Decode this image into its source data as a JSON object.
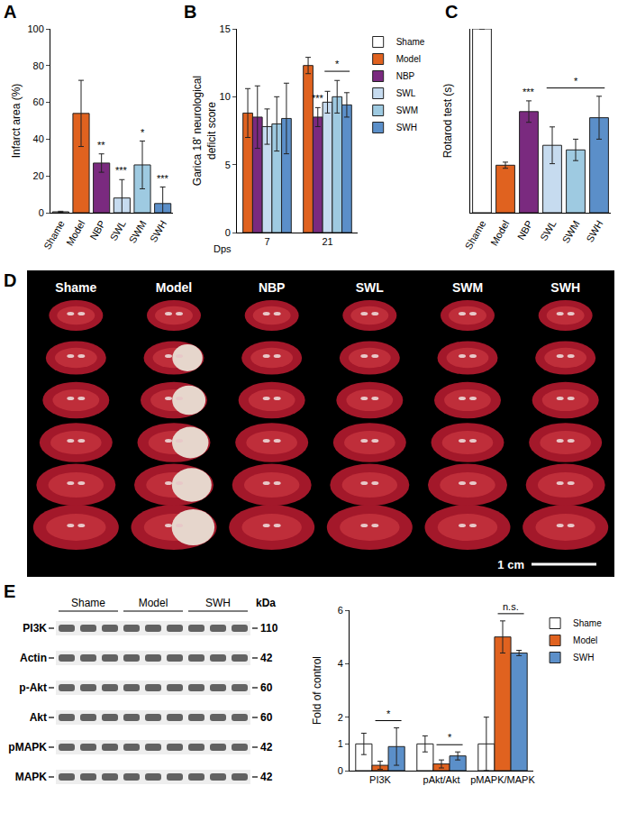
{
  "chart_data": [
    {
      "panel": "A",
      "type": "bar",
      "categories": [
        "Shame",
        "Model",
        "NBP",
        "SWL",
        "SWM",
        "SWH"
      ],
      "values": [
        0.5,
        54,
        27,
        8,
        26,
        5
      ],
      "errors": [
        0.3,
        18,
        5,
        10,
        13,
        9
      ],
      "colors": [
        "#ffffff",
        "#e0621f",
        "#7a2a7f",
        "#c6dbef",
        "#9ecae1",
        "#5b8fc9"
      ],
      "y_label": "Infarct area (%)",
      "ylim": [
        0,
        100
      ],
      "yticks": [
        0,
        20,
        40,
        60,
        80,
        100
      ],
      "significance": [
        {
          "category": "NBP",
          "text": "**"
        },
        {
          "category": "SWL",
          "text": "***"
        },
        {
          "category": "SWM",
          "text": "*"
        },
        {
          "category": "SWH",
          "text": "***"
        }
      ]
    },
    {
      "panel": "B",
      "type": "bar",
      "categories": [
        "7",
        "21"
      ],
      "x_label": "Dps",
      "y_label": "Garica 18' neurological deficit score",
      "series": [
        {
          "name": "Shame",
          "color": "#ffffff",
          "values": [
            null,
            null
          ],
          "errors": [
            null,
            null
          ]
        },
        {
          "name": "Model",
          "color": "#e0621f",
          "values": [
            8.8,
            12.3
          ],
          "errors": [
            1.8,
            0.6
          ]
        },
        {
          "name": "NBP",
          "color": "#7a2a7f",
          "values": [
            8.5,
            8.5
          ],
          "errors": [
            2.3,
            0.7
          ]
        },
        {
          "name": "SWL",
          "color": "#c6dbef",
          "values": [
            7.8,
            9.6
          ],
          "errors": [
            1.3,
            0.8
          ]
        },
        {
          "name": "SWM",
          "color": "#9ecae1",
          "values": [
            8.0,
            10.0
          ],
          "errors": [
            2.0,
            1.2
          ]
        },
        {
          "name": "SWH",
          "color": "#5b8fc9",
          "values": [
            8.4,
            9.4
          ],
          "errors": [
            2.6,
            0.9
          ]
        }
      ],
      "ylim": [
        0,
        15
      ],
      "yticks": [
        0,
        5,
        10,
        15
      ],
      "legend": "right",
      "significance": [
        {
          "category": "21",
          "series": "NBP",
          "text": "***"
        }
      ],
      "brackets": [
        {
          "category": "21",
          "from": "SWL",
          "to": "SWH",
          "text": "*"
        }
      ]
    },
    {
      "panel": "C",
      "type": "bar",
      "categories": [
        "Shame",
        "Model",
        "NBP",
        "SWL",
        "SWM",
        "SWH"
      ],
      "values": [
        120,
        31,
        66,
        44,
        41,
        62
      ],
      "errors": [
        0,
        2,
        7,
        12,
        7,
        14
      ],
      "colors": [
        "#ffffff",
        "#e0621f",
        "#7a2a7f",
        "#c6dbef",
        "#9ecae1",
        "#5b8fc9"
      ],
      "y_label": "Rotarod test (s)",
      "ylim": [
        0,
        120
      ],
      "tick_labels": "x",
      "significance": [
        {
          "category": "NBP",
          "text": "***"
        }
      ],
      "brackets": [
        {
          "from": "SWL",
          "to": "SWH",
          "text": "*"
        }
      ]
    },
    {
      "panel": "E",
      "type": "bar",
      "categories": [
        "PI3K",
        "pAkt/Akt",
        "pMAPK/MAPK"
      ],
      "y_label": "Fold of control",
      "series": [
        {
          "name": "Shame",
          "color": "#ffffff",
          "values": [
            1.0,
            1.0,
            1.0
          ],
          "errors": [
            0.4,
            0.3,
            1.0
          ]
        },
        {
          "name": "Model",
          "color": "#e0621f",
          "values": [
            0.2,
            0.25,
            5.0
          ],
          "errors": [
            0.15,
            0.15,
            0.6
          ]
        },
        {
          "name": "SWH",
          "color": "#5b8fc9",
          "values": [
            0.9,
            0.55,
            4.4
          ],
          "errors": [
            0.7,
            0.15,
            0.1
          ]
        }
      ],
      "ylim": [
        0,
        6
      ],
      "yticks": [
        0,
        1,
        2,
        4,
        6
      ],
      "legend": "right",
      "brackets": [
        {
          "category": "PI3K",
          "from": "Model",
          "to": "SWH",
          "text": "*"
        },
        {
          "category": "pAkt/Akt",
          "from": "Model",
          "to": "SWH",
          "text": "*"
        },
        {
          "category": "pMAPK/MAPK",
          "from": "Model",
          "to": "SWH",
          "text": "n.s."
        }
      ]
    }
  ],
  "photo": {
    "panel": "D",
    "columns": [
      "Shame",
      "Model",
      "NBP",
      "SWL",
      "SWM",
      "SWH"
    ],
    "scale_bar": "1 cm"
  },
  "blot": {
    "panel": "E",
    "unit": "kDa",
    "groups": [
      "Shame",
      "Model",
      "SWH"
    ],
    "rows": [
      {
        "label": "PI3K",
        "kda": 110
      },
      {
        "label": "Actin",
        "kda": 42
      },
      {
        "label": "p-Akt",
        "kda": 60
      },
      {
        "label": "Akt",
        "kda": 60
      },
      {
        "label": "pMAPK",
        "kda": 42
      },
      {
        "label": "MAPK",
        "kda": 42
      }
    ]
  }
}
